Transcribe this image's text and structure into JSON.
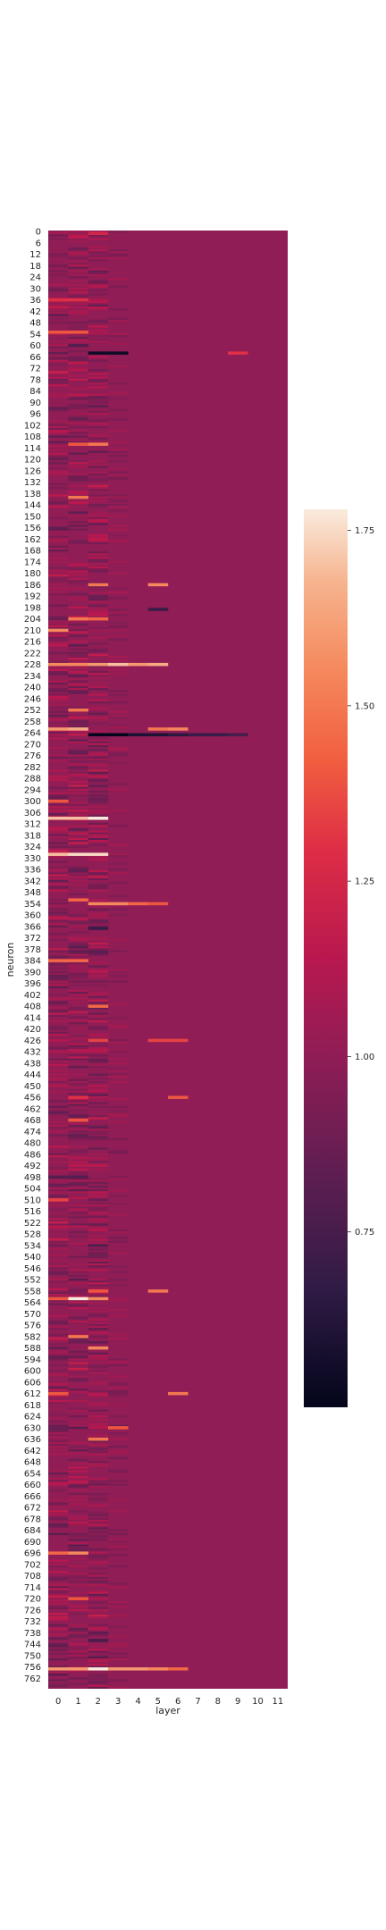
{
  "chart_data": {
    "type": "heatmap",
    "title": "",
    "xlabel": "layer",
    "ylabel": "neuron",
    "x_categories": [
      "0",
      "1",
      "2",
      "3",
      "4",
      "5",
      "6",
      "7",
      "8",
      "9",
      "10",
      "11"
    ],
    "y_tick_labels": [
      "0",
      "6",
      "12",
      "18",
      "24",
      "30",
      "36",
      "42",
      "48",
      "54",
      "60",
      "66",
      "72",
      "78",
      "84",
      "90",
      "96",
      "102",
      "108",
      "114",
      "120",
      "126",
      "132",
      "138",
      "144",
      "150",
      "156",
      "162",
      "168",
      "174",
      "180",
      "186",
      "192",
      "198",
      "204",
      "210",
      "216",
      "222",
      "228",
      "234",
      "240",
      "246",
      "252",
      "258",
      "264",
      "270",
      "276",
      "282",
      "288",
      "294",
      "300",
      "306",
      "312",
      "318",
      "324",
      "330",
      "336",
      "342",
      "348",
      "354",
      "360",
      "366",
      "372",
      "378",
      "384",
      "390",
      "396",
      "402",
      "408",
      "414",
      "420",
      "426",
      "432",
      "438",
      "444",
      "450",
      "456",
      "462",
      "468",
      "474",
      "480",
      "486",
      "492",
      "498",
      "504",
      "510",
      "516",
      "522",
      "528",
      "534",
      "540",
      "546",
      "552",
      "558",
      "564",
      "570",
      "576",
      "582",
      "588",
      "594",
      "600",
      "606",
      "612",
      "618",
      "624",
      "630",
      "636",
      "642",
      "648",
      "654",
      "660",
      "666",
      "672",
      "678",
      "684",
      "690",
      "696",
      "702",
      "708",
      "714",
      "720",
      "726",
      "732",
      "738",
      "744",
      "750",
      "756",
      "762"
    ],
    "y_range": [
      0,
      767
    ],
    "value_range": [
      0.5,
      1.78
    ],
    "colorbar_ticks": [
      "0.75",
      "1.00",
      "1.25",
      "1.50",
      "1.75"
    ],
    "colorbar_tick_values": [
      0.75,
      1.0,
      1.25,
      1.5,
      1.75
    ],
    "colormap": "rocket",
    "base_value": 1.0,
    "grid": false,
    "colorbar_position": "right",
    "notable_cells": [
      {
        "neuron": 1,
        "layer": 2,
        "value": 1.25
      },
      {
        "neuron": 36,
        "layer": 0,
        "value": 1.3
      },
      {
        "neuron": 36,
        "layer": 1,
        "value": 1.3
      },
      {
        "neuron": 53,
        "layer": 0,
        "value": 1.4
      },
      {
        "neuron": 53,
        "layer": 1,
        "value": 1.4
      },
      {
        "neuron": 60,
        "layer": 1,
        "value": 0.8
      },
      {
        "neuron": 64,
        "layer": 2,
        "value": 0.55
      },
      {
        "neuron": 64,
        "layer": 3,
        "value": 0.55
      },
      {
        "neuron": 64,
        "layer": 9,
        "value": 1.3
      },
      {
        "neuron": 112,
        "layer": 1,
        "value": 1.4
      },
      {
        "neuron": 112,
        "layer": 2,
        "value": 1.5
      },
      {
        "neuron": 140,
        "layer": 1,
        "value": 1.5
      },
      {
        "neuron": 186,
        "layer": 2,
        "value": 1.5
      },
      {
        "neuron": 186,
        "layer": 5,
        "value": 1.55
      },
      {
        "neuron": 199,
        "layer": 5,
        "value": 0.7
      },
      {
        "neuron": 204,
        "layer": 1,
        "value": 1.5
      },
      {
        "neuron": 204,
        "layer": 2,
        "value": 1.45
      },
      {
        "neuron": 210,
        "layer": 0,
        "value": 1.55
      },
      {
        "neuron": 228,
        "layer": 0,
        "value": 1.55
      },
      {
        "neuron": 228,
        "layer": 1,
        "value": 1.55
      },
      {
        "neuron": 228,
        "layer": 2,
        "value": 1.6
      },
      {
        "neuron": 228,
        "layer": 3,
        "value": 1.7
      },
      {
        "neuron": 228,
        "layer": 4,
        "value": 1.6
      },
      {
        "neuron": 228,
        "layer": 5,
        "value": 1.65
      },
      {
        "neuron": 252,
        "layer": 1,
        "value": 1.5
      },
      {
        "neuron": 262,
        "layer": 0,
        "value": 1.6
      },
      {
        "neuron": 262,
        "layer": 1,
        "value": 1.65
      },
      {
        "neuron": 262,
        "layer": 5,
        "value": 1.5
      },
      {
        "neuron": 262,
        "layer": 6,
        "value": 1.55
      },
      {
        "neuron": 265,
        "layer": 2,
        "value": 0.5
      },
      {
        "neuron": 265,
        "layer": 3,
        "value": 0.5
      },
      {
        "neuron": 265,
        "layer": 4,
        "value": 0.6
      },
      {
        "neuron": 265,
        "layer": 5,
        "value": 0.6
      },
      {
        "neuron": 265,
        "layer": 6,
        "value": 0.65
      },
      {
        "neuron": 265,
        "layer": 7,
        "value": 0.7
      },
      {
        "neuron": 265,
        "layer": 8,
        "value": 0.7
      },
      {
        "neuron": 265,
        "layer": 9,
        "value": 0.75
      },
      {
        "neuron": 300,
        "layer": 0,
        "value": 1.4
      },
      {
        "neuron": 309,
        "layer": 0,
        "value": 1.7
      },
      {
        "neuron": 309,
        "layer": 1,
        "value": 1.7
      },
      {
        "neuron": 309,
        "layer": 2,
        "value": 1.78
      },
      {
        "neuron": 328,
        "layer": 0,
        "value": 1.7
      },
      {
        "neuron": 328,
        "layer": 1,
        "value": 1.75
      },
      {
        "neuron": 328,
        "layer": 2,
        "value": 1.75
      },
      {
        "neuron": 352,
        "layer": 1,
        "value": 1.45
      },
      {
        "neuron": 354,
        "layer": 2,
        "value": 1.55
      },
      {
        "neuron": 354,
        "layer": 3,
        "value": 1.55
      },
      {
        "neuron": 354,
        "layer": 4,
        "value": 1.45
      },
      {
        "neuron": 354,
        "layer": 5,
        "value": 1.4
      },
      {
        "neuron": 367,
        "layer": 2,
        "value": 0.7
      },
      {
        "neuron": 384,
        "layer": 0,
        "value": 1.45
      },
      {
        "neuron": 384,
        "layer": 1,
        "value": 1.45
      },
      {
        "neuron": 408,
        "layer": 2,
        "value": 1.45
      },
      {
        "neuron": 426,
        "layer": 2,
        "value": 1.35
      },
      {
        "neuron": 426,
        "layer": 5,
        "value": 1.35
      },
      {
        "neuron": 426,
        "layer": 6,
        "value": 1.35
      },
      {
        "neuron": 456,
        "layer": 6,
        "value": 1.4
      },
      {
        "neuron": 456,
        "layer": 1,
        "value": 1.3
      },
      {
        "neuron": 468,
        "layer": 1,
        "value": 1.4
      },
      {
        "neuron": 498,
        "layer": 0,
        "value": 0.8
      },
      {
        "neuron": 498,
        "layer": 1,
        "value": 0.8
      },
      {
        "neuron": 510,
        "layer": 0,
        "value": 1.35
      },
      {
        "neuron": 534,
        "layer": 2,
        "value": 0.8
      },
      {
        "neuron": 558,
        "layer": 5,
        "value": 1.5
      },
      {
        "neuron": 558,
        "layer": 2,
        "value": 1.4
      },
      {
        "neuron": 562,
        "layer": 1,
        "value": 1.78
      },
      {
        "neuron": 562,
        "layer": 2,
        "value": 1.55
      },
      {
        "neuron": 562,
        "layer": 0,
        "value": 1.4
      },
      {
        "neuron": 582,
        "layer": 1,
        "value": 1.5
      },
      {
        "neuron": 588,
        "layer": 2,
        "value": 1.55
      },
      {
        "neuron": 612,
        "layer": 0,
        "value": 1.4
      },
      {
        "neuron": 612,
        "layer": 6,
        "value": 1.5
      },
      {
        "neuron": 630,
        "layer": 3,
        "value": 1.4
      },
      {
        "neuron": 636,
        "layer": 2,
        "value": 1.5
      },
      {
        "neuron": 696,
        "layer": 1,
        "value": 1.55
      },
      {
        "neuron": 696,
        "layer": 0,
        "value": 1.45
      },
      {
        "neuron": 720,
        "layer": 1,
        "value": 1.4
      },
      {
        "neuron": 742,
        "layer": 2,
        "value": 0.75
      },
      {
        "neuron": 757,
        "layer": 0,
        "value": 1.6
      },
      {
        "neuron": 757,
        "layer": 1,
        "value": 1.6
      },
      {
        "neuron": 757,
        "layer": 2,
        "value": 1.78
      },
      {
        "neuron": 757,
        "layer": 3,
        "value": 1.6
      },
      {
        "neuron": 757,
        "layer": 4,
        "value": 1.6
      },
      {
        "neuron": 757,
        "layer": 5,
        "value": 1.55
      },
      {
        "neuron": 757,
        "layer": 6,
        "value": 1.45
      }
    ]
  }
}
